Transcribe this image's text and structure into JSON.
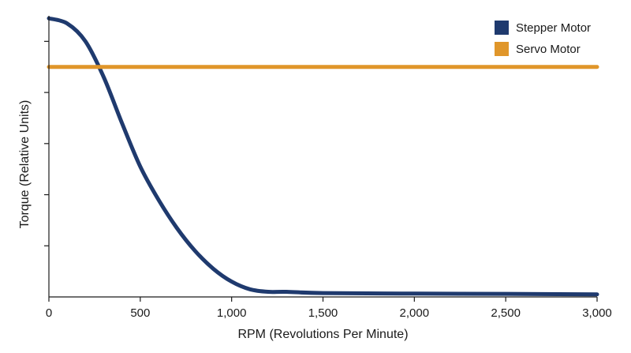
{
  "chart_data": {
    "type": "line",
    "xlabel": "RPM (Revolutions Per Minute)",
    "ylabel": "Torque (Relative Units)",
    "xlim": [
      0,
      3000
    ],
    "ylim": [
      0,
      1.1
    ],
    "x_ticks": [
      0,
      500,
      1000,
      1500,
      2000,
      2500,
      3000
    ],
    "x_tick_labels": [
      "0",
      "500",
      "1,000",
      "1,500",
      "2,000",
      "2,500",
      "3,000"
    ],
    "y_ticks": [
      0.2,
      0.4,
      0.6,
      0.8,
      1.0
    ],
    "y_tick_labels": [
      "",
      "",
      "",
      "",
      ""
    ],
    "grid": false,
    "legend_position": "top-right",
    "series": [
      {
        "name": "Stepper Motor",
        "color": "#1f3a6e",
        "x": [
          0,
          100,
          200,
          300,
          400,
          500,
          600,
          700,
          800,
          900,
          1000,
          1100,
          1200,
          1300,
          1500,
          2000,
          2500,
          3000
        ],
        "y": [
          1.09,
          1.07,
          1.0,
          0.86,
          0.68,
          0.51,
          0.38,
          0.27,
          0.18,
          0.11,
          0.06,
          0.03,
          0.02,
          0.02,
          0.015,
          0.013,
          0.012,
          0.01
        ]
      },
      {
        "name": "Servo Motor",
        "color": "#e0962a",
        "x": [
          0,
          3000
        ],
        "y": [
          0.9,
          0.9
        ]
      }
    ]
  }
}
